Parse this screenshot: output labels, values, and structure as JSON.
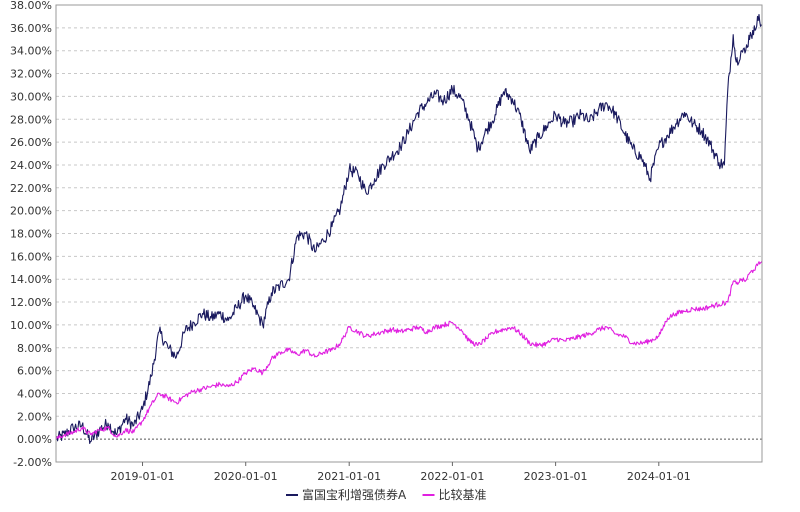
{
  "chart_data": {
    "type": "line",
    "title": "",
    "xlabel": "",
    "ylabel": "",
    "ylim": [
      -2.0,
      38.0
    ],
    "yticks": [
      "-2.00%",
      "0.00%",
      "2.00%",
      "4.00%",
      "6.00%",
      "8.00%",
      "10.00%",
      "12.00%",
      "14.00%",
      "16.00%",
      "18.00%",
      "20.00%",
      "22.00%",
      "24.00%",
      "26.00%",
      "28.00%",
      "30.00%",
      "32.00%",
      "34.00%",
      "36.00%",
      "38.00%"
    ],
    "xlim": [
      "2018-03-01",
      "2024-12-31"
    ],
    "xticks": [
      "2019-01-01",
      "2020-01-01",
      "2021-01-01",
      "2022-01-01",
      "2023-01-01",
      "2024-01-01"
    ],
    "grid": true,
    "legend_position": "bottom",
    "series": [
      {
        "name": "富国宝利增强债券A",
        "color": "#1a1a5e",
        "points": [
          [
            "2018-03-01",
            0.0
          ],
          [
            "2018-04-01",
            0.4
          ],
          [
            "2018-05-01",
            1.0
          ],
          [
            "2018-06-01",
            1.2
          ],
          [
            "2018-07-01",
            -0.2
          ],
          [
            "2018-08-01",
            0.8
          ],
          [
            "2018-09-01",
            1.4
          ],
          [
            "2018-10-01",
            0.4
          ],
          [
            "2018-11-01",
            1.8
          ],
          [
            "2018-12-01",
            1.2
          ],
          [
            "2019-01-01",
            2.6
          ],
          [
            "2019-02-01",
            5.5
          ],
          [
            "2019-03-01",
            9.4
          ],
          [
            "2019-04-01",
            8.0
          ],
          [
            "2019-05-01",
            7.2
          ],
          [
            "2019-06-01",
            9.5
          ],
          [
            "2019-07-01",
            10.2
          ],
          [
            "2019-08-01",
            11.0
          ],
          [
            "2019-09-01",
            10.6
          ],
          [
            "2019-10-01",
            11.0
          ],
          [
            "2019-11-01",
            10.4
          ],
          [
            "2019-12-01",
            11.5
          ],
          [
            "2020-01-01",
            12.6
          ],
          [
            "2020-02-01",
            11.4
          ],
          [
            "2020-03-01",
            10.0
          ],
          [
            "2020-04-01",
            12.8
          ],
          [
            "2020-05-01",
            13.4
          ],
          [
            "2020-06-01",
            14.0
          ],
          [
            "2020-07-01",
            17.8
          ],
          [
            "2020-08-01",
            18.0
          ],
          [
            "2020-09-01",
            16.4
          ],
          [
            "2020-10-01",
            17.4
          ],
          [
            "2020-11-01",
            18.6
          ],
          [
            "2020-12-01",
            20.2
          ],
          [
            "2021-01-01",
            23.6
          ],
          [
            "2021-02-01",
            23.2
          ],
          [
            "2021-03-01",
            21.6
          ],
          [
            "2021-04-01",
            22.8
          ],
          [
            "2021-05-01",
            24.0
          ],
          [
            "2021-06-01",
            24.8
          ],
          [
            "2021-07-01",
            25.6
          ],
          [
            "2021-08-01",
            27.0
          ],
          [
            "2021-09-01",
            28.6
          ],
          [
            "2021-10-01",
            29.4
          ],
          [
            "2021-11-01",
            30.2
          ],
          [
            "2021-12-01",
            29.6
          ],
          [
            "2022-01-01",
            30.6
          ],
          [
            "2022-02-01",
            29.8
          ],
          [
            "2022-03-01",
            28.0
          ],
          [
            "2022-04-01",
            25.4
          ],
          [
            "2022-05-01",
            27.0
          ],
          [
            "2022-06-01",
            28.4
          ],
          [
            "2022-07-01",
            30.4
          ],
          [
            "2022-08-01",
            29.8
          ],
          [
            "2022-09-01",
            28.0
          ],
          [
            "2022-10-01",
            25.2
          ],
          [
            "2022-11-01",
            26.4
          ],
          [
            "2022-12-01",
            27.4
          ],
          [
            "2023-01-01",
            28.4
          ],
          [
            "2023-02-01",
            27.6
          ],
          [
            "2023-03-01",
            27.8
          ],
          [
            "2023-04-01",
            28.4
          ],
          [
            "2023-05-01",
            27.8
          ],
          [
            "2023-06-01",
            28.8
          ],
          [
            "2023-07-01",
            29.4
          ],
          [
            "2023-08-01",
            28.4
          ],
          [
            "2023-09-01",
            26.8
          ],
          [
            "2023-10-01",
            25.4
          ],
          [
            "2023-11-01",
            24.6
          ],
          [
            "2023-12-01",
            22.8
          ],
          [
            "2024-01-01",
            25.6
          ],
          [
            "2024-02-01",
            26.6
          ],
          [
            "2024-03-01",
            27.6
          ],
          [
            "2024-04-01",
            28.6
          ],
          [
            "2024-05-01",
            27.6
          ],
          [
            "2024-06-01",
            27.0
          ],
          [
            "2024-07-01",
            25.8
          ],
          [
            "2024-08-01",
            24.2
          ],
          [
            "2024-08-20",
            24.0
          ],
          [
            "2024-09-01",
            30.6
          ],
          [
            "2024-09-20",
            35.4
          ],
          [
            "2024-10-01",
            33.0
          ],
          [
            "2024-10-20",
            34.0
          ],
          [
            "2024-11-01",
            33.8
          ],
          [
            "2024-11-20",
            35.6
          ],
          [
            "2024-12-01",
            35.4
          ],
          [
            "2024-12-15",
            37.0
          ],
          [
            "2024-12-31",
            36.2
          ]
        ]
      },
      {
        "name": "比较基准",
        "color": "#e020e0",
        "points": [
          [
            "2018-03-01",
            0.0
          ],
          [
            "2018-04-01",
            0.4
          ],
          [
            "2018-05-01",
            0.6
          ],
          [
            "2018-06-01",
            1.0
          ],
          [
            "2018-07-01",
            0.4
          ],
          [
            "2018-08-01",
            0.8
          ],
          [
            "2018-09-01",
            1.0
          ],
          [
            "2018-10-01",
            0.2
          ],
          [
            "2018-11-01",
            0.8
          ],
          [
            "2018-12-01",
            0.6
          ],
          [
            "2019-01-01",
            1.6
          ],
          [
            "2019-02-01",
            3.0
          ],
          [
            "2019-03-01",
            4.0
          ],
          [
            "2019-04-01",
            3.6
          ],
          [
            "2019-05-01",
            3.2
          ],
          [
            "2019-06-01",
            3.8
          ],
          [
            "2019-07-01",
            4.2
          ],
          [
            "2019-08-01",
            4.4
          ],
          [
            "2019-09-01",
            4.6
          ],
          [
            "2019-10-01",
            4.8
          ],
          [
            "2019-11-01",
            4.6
          ],
          [
            "2019-12-01",
            5.0
          ],
          [
            "2020-01-01",
            5.8
          ],
          [
            "2020-02-01",
            6.2
          ],
          [
            "2020-03-01",
            5.8
          ],
          [
            "2020-04-01",
            7.0
          ],
          [
            "2020-05-01",
            7.6
          ],
          [
            "2020-06-01",
            7.8
          ],
          [
            "2020-07-01",
            7.4
          ],
          [
            "2020-08-01",
            7.8
          ],
          [
            "2020-09-01",
            7.2
          ],
          [
            "2020-10-01",
            7.6
          ],
          [
            "2020-11-01",
            7.8
          ],
          [
            "2020-12-01",
            8.4
          ],
          [
            "2021-01-01",
            9.8
          ],
          [
            "2021-02-01",
            9.4
          ],
          [
            "2021-03-01",
            9.0
          ],
          [
            "2021-04-01",
            9.2
          ],
          [
            "2021-05-01",
            9.4
          ],
          [
            "2021-06-01",
            9.6
          ],
          [
            "2021-07-01",
            9.4
          ],
          [
            "2021-08-01",
            9.6
          ],
          [
            "2021-09-01",
            9.8
          ],
          [
            "2021-10-01",
            9.4
          ],
          [
            "2021-11-01",
            9.8
          ],
          [
            "2021-12-01",
            10.0
          ],
          [
            "2022-01-01",
            10.2
          ],
          [
            "2022-02-01",
            9.6
          ],
          [
            "2022-03-01",
            8.6
          ],
          [
            "2022-04-01",
            8.2
          ],
          [
            "2022-05-01",
            8.8
          ],
          [
            "2022-06-01",
            9.4
          ],
          [
            "2022-07-01",
            9.6
          ],
          [
            "2022-08-01",
            9.8
          ],
          [
            "2022-09-01",
            9.2
          ],
          [
            "2022-10-01",
            8.4
          ],
          [
            "2022-11-01",
            8.2
          ],
          [
            "2022-12-01",
            8.4
          ],
          [
            "2023-01-01",
            8.8
          ],
          [
            "2023-02-01",
            8.6
          ],
          [
            "2023-03-01",
            8.8
          ],
          [
            "2023-04-01",
            9.0
          ],
          [
            "2023-05-01",
            9.2
          ],
          [
            "2023-06-01",
            9.6
          ],
          [
            "2023-07-01",
            9.8
          ],
          [
            "2023-08-01",
            9.2
          ],
          [
            "2023-09-01",
            9.0
          ],
          [
            "2023-10-01",
            8.4
          ],
          [
            "2023-11-01",
            8.4
          ],
          [
            "2023-12-01",
            8.6
          ],
          [
            "2024-01-01",
            9.0
          ],
          [
            "2024-02-01",
            10.6
          ],
          [
            "2024-03-01",
            11.0
          ],
          [
            "2024-04-01",
            11.2
          ],
          [
            "2024-05-01",
            11.4
          ],
          [
            "2024-06-01",
            11.4
          ],
          [
            "2024-07-01",
            11.6
          ],
          [
            "2024-08-01",
            11.8
          ],
          [
            "2024-09-01",
            12.0
          ],
          [
            "2024-09-20",
            13.8
          ],
          [
            "2024-10-01",
            13.6
          ],
          [
            "2024-10-20",
            14.0
          ],
          [
            "2024-11-01",
            13.8
          ],
          [
            "2024-11-20",
            14.6
          ],
          [
            "2024-12-01",
            14.8
          ],
          [
            "2024-12-15",
            15.2
          ],
          [
            "2024-12-31",
            15.6
          ]
        ]
      }
    ]
  }
}
